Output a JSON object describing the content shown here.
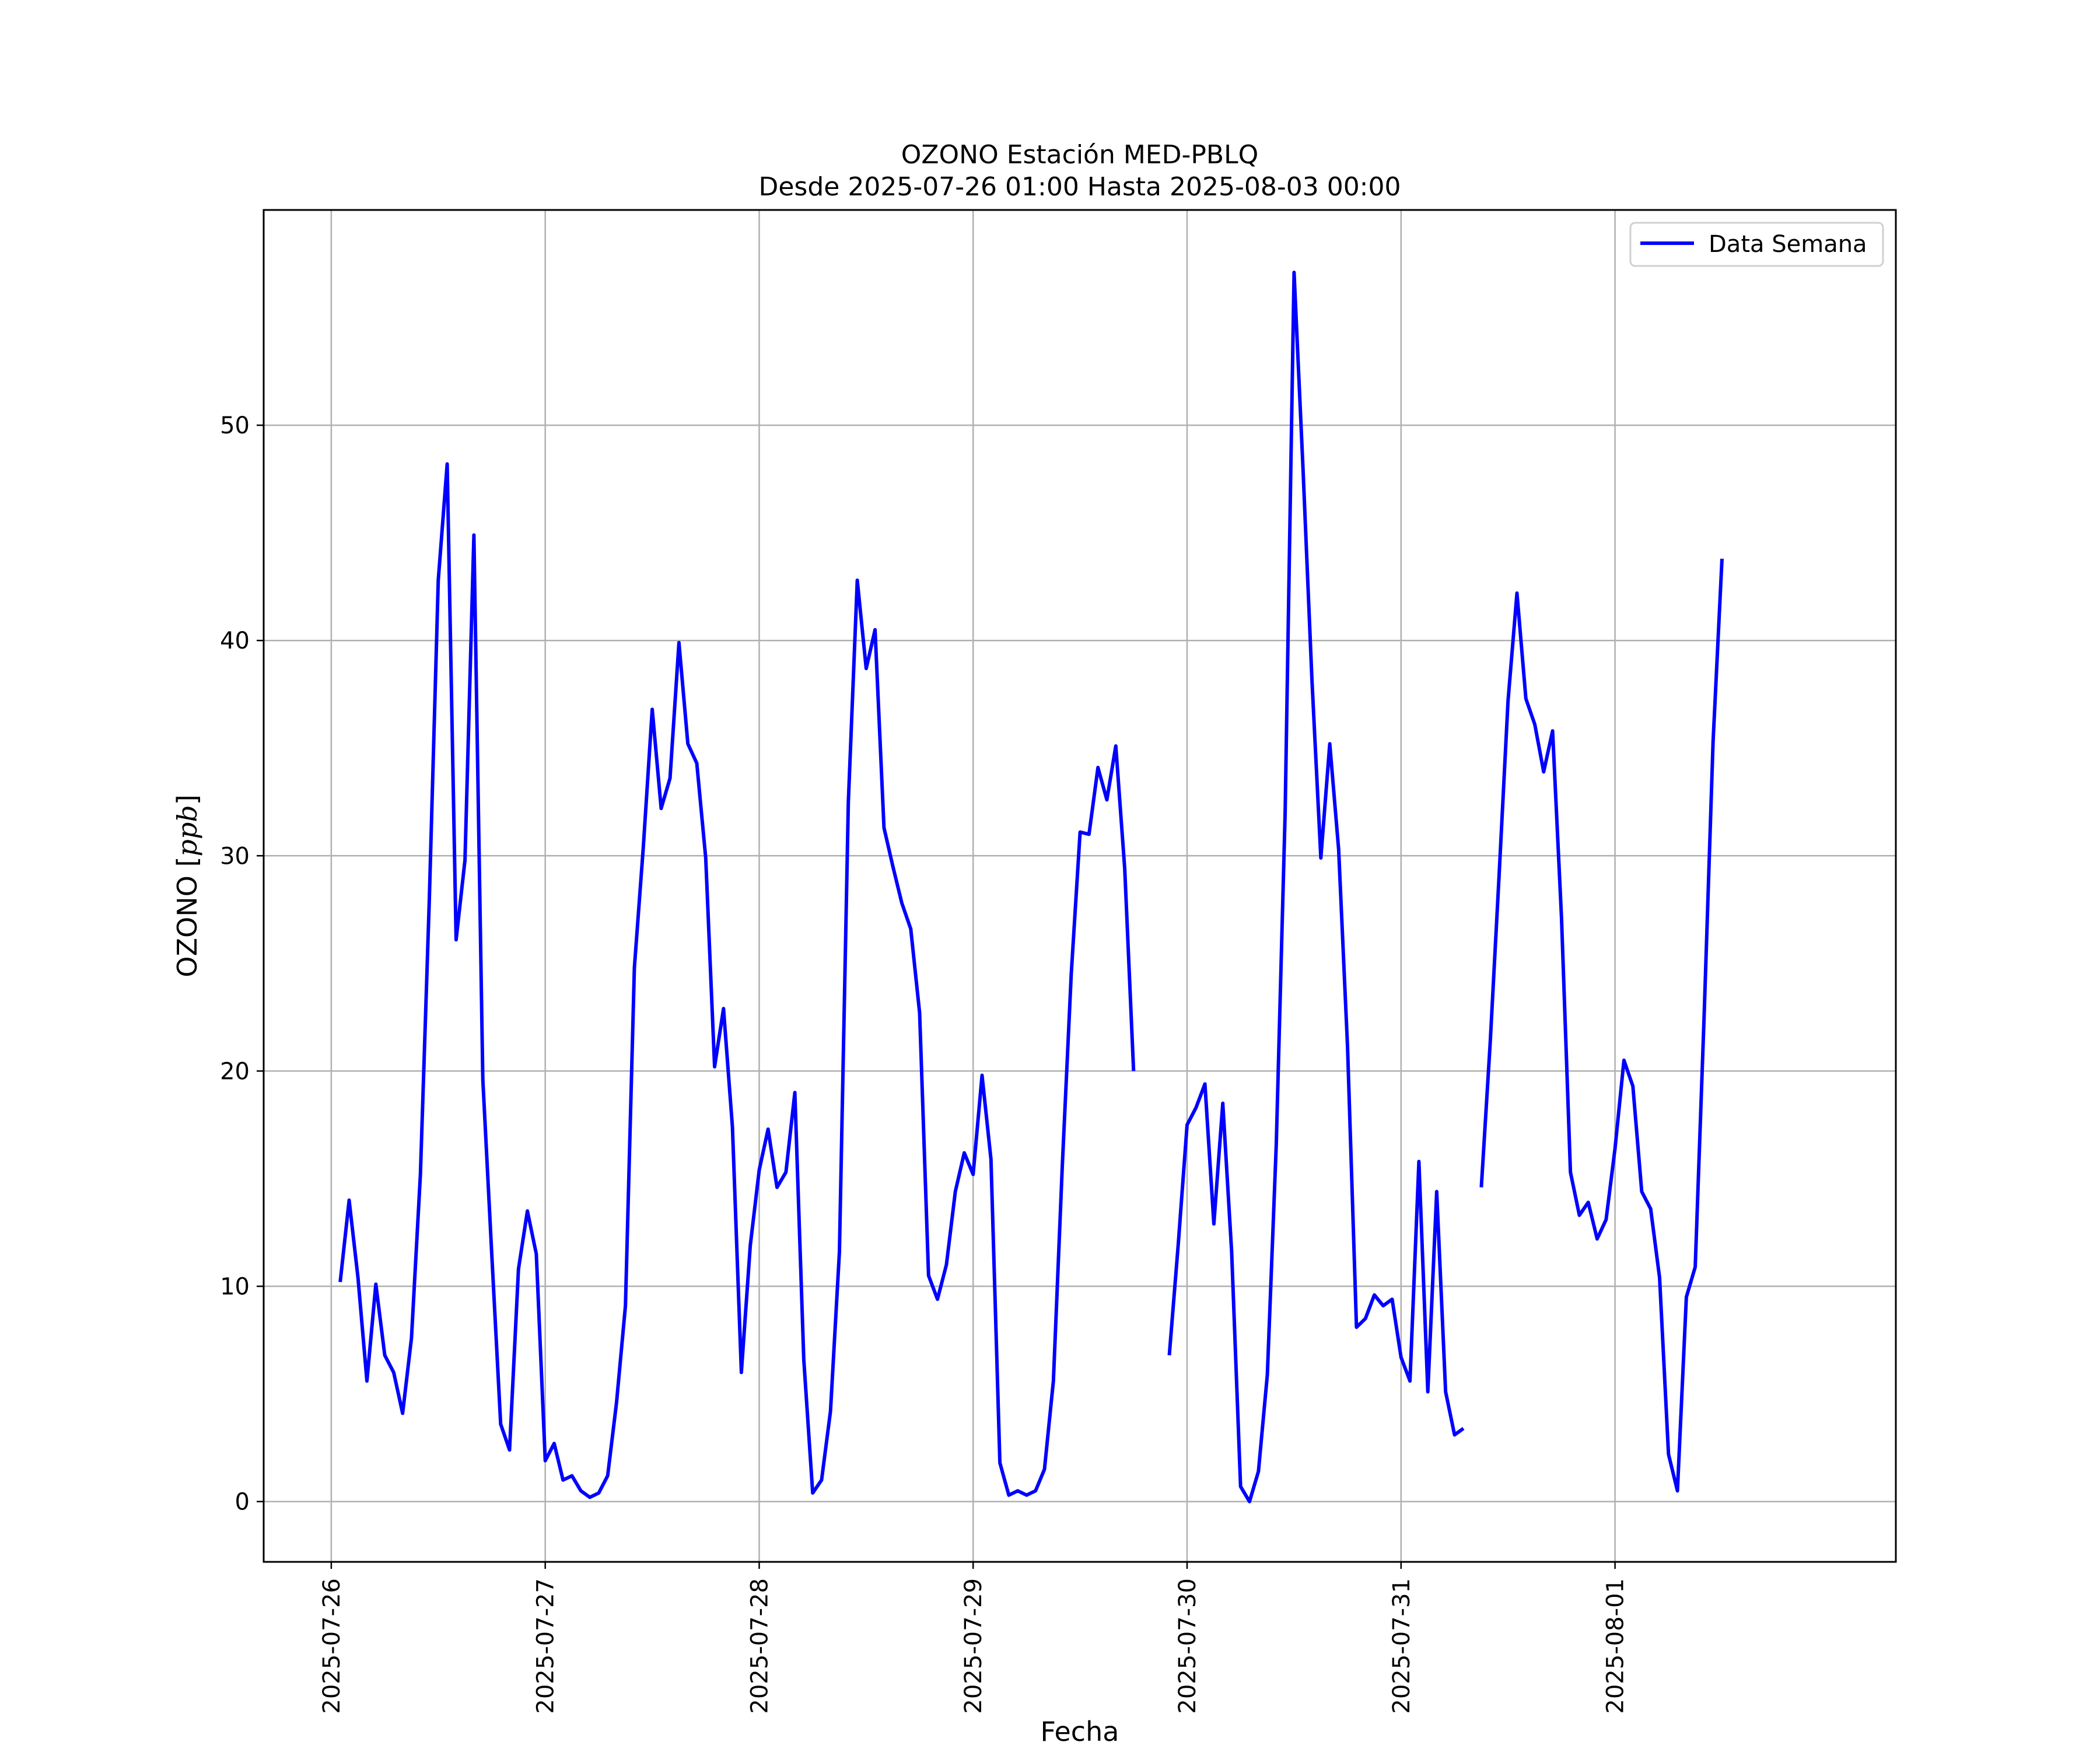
{
  "chart_data": {
    "type": "line",
    "title": "OZONO Estación MED-PBLQ",
    "subtitle": "Desde 2025-07-26 01:00 Hasta 2025-08-03 00:00",
    "xlabel": "Fecha",
    "ylabel_prefix": "OZONO [",
    "ylabel_unit": "ppb",
    "ylabel_suffix": "]",
    "ylim": [
      -2.8,
      60.0
    ],
    "xlim": [
      "2025-07-25 16:25",
      "2025-08-02 07:30"
    ],
    "grid": true,
    "legend_position": "top-right",
    "x_ticks": [
      "2025-07-26",
      "2025-07-27",
      "2025-07-28",
      "2025-07-29",
      "2025-07-30",
      "2025-07-31",
      "2025-08-01"
    ],
    "y_ticks": [
      0,
      10,
      20,
      30,
      40,
      50
    ],
    "series": [
      {
        "name": "Data Semana",
        "color": "#0000ff",
        "points": [
          [
            "2025-07-26 01:00",
            10.2
          ],
          [
            "2025-07-26 02:00",
            14.0
          ],
          [
            "2025-07-26 03:00",
            10.4
          ],
          [
            "2025-07-26 04:00",
            5.6
          ],
          [
            "2025-07-26 05:00",
            10.1
          ],
          [
            "2025-07-26 06:00",
            6.8
          ],
          [
            "2025-07-26 07:00",
            6.0
          ],
          [
            "2025-07-26 08:00",
            4.1
          ],
          [
            "2025-07-26 09:00",
            7.6
          ],
          [
            "2025-07-26 10:00",
            15.2
          ],
          [
            "2025-07-26 11:00",
            28.0
          ],
          [
            "2025-07-26 12:00",
            42.8
          ],
          [
            "2025-07-26 13:00",
            48.2
          ],
          [
            "2025-07-26 14:00",
            26.1
          ],
          [
            "2025-07-26 15:00",
            29.8
          ],
          [
            "2025-07-26 16:00",
            44.9
          ],
          [
            "2025-07-26 17:00",
            19.6
          ],
          [
            "2025-07-26 18:00",
            11.5
          ],
          [
            "2025-07-26 19:00",
            3.6
          ],
          [
            "2025-07-26 20:00",
            2.4
          ],
          [
            "2025-07-26 21:00",
            10.8
          ],
          [
            "2025-07-26 22:00",
            13.5
          ],
          [
            "2025-07-26 23:00",
            11.5
          ],
          [
            "2025-07-27 00:00",
            1.9
          ],
          [
            "2025-07-27 01:00",
            2.7
          ],
          [
            "2025-07-27 02:00",
            1.0
          ],
          [
            "2025-07-27 03:00",
            1.2
          ],
          [
            "2025-07-27 04:00",
            0.5
          ],
          [
            "2025-07-27 05:00",
            0.2
          ],
          [
            "2025-07-27 06:00",
            0.4
          ],
          [
            "2025-07-27 07:00",
            1.2
          ],
          [
            "2025-07-27 08:00",
            4.6
          ],
          [
            "2025-07-27 09:00",
            9.1
          ],
          [
            "2025-07-27 10:00",
            24.8
          ],
          [
            "2025-07-27 11:00",
            30.4
          ],
          [
            "2025-07-27 12:00",
            36.8
          ],
          [
            "2025-07-27 13:00",
            32.2
          ],
          [
            "2025-07-27 14:00",
            33.6
          ],
          [
            "2025-07-27 15:00",
            39.9
          ],
          [
            "2025-07-27 16:00",
            35.2
          ],
          [
            "2025-07-27 17:00",
            34.3
          ],
          [
            "2025-07-27 18:00",
            29.9
          ],
          [
            "2025-07-27 19:00",
            20.2
          ],
          [
            "2025-07-27 20:00",
            22.9
          ],
          [
            "2025-07-27 21:00",
            17.4
          ],
          [
            "2025-07-27 22:00",
            6.0
          ],
          [
            "2025-07-27 23:00",
            11.9
          ],
          [
            "2025-07-28 00:00",
            15.4
          ],
          [
            "2025-07-28 01:00",
            17.3
          ],
          [
            "2025-07-28 02:00",
            14.6
          ],
          [
            "2025-07-28 03:00",
            15.3
          ],
          [
            "2025-07-28 04:00",
            19.0
          ],
          [
            "2025-07-28 05:00",
            6.6
          ],
          [
            "2025-07-28 06:00",
            0.4
          ],
          [
            "2025-07-28 07:00",
            1.0
          ],
          [
            "2025-07-28 08:00",
            4.2
          ],
          [
            "2025-07-28 09:00",
            11.6
          ],
          [
            "2025-07-28 10:00",
            32.5
          ],
          [
            "2025-07-28 11:00",
            42.8
          ],
          [
            "2025-07-28 12:00",
            38.7
          ],
          [
            "2025-07-28 13:00",
            40.5
          ],
          [
            "2025-07-28 14:00",
            31.3
          ],
          [
            "2025-07-28 15:00",
            29.5
          ],
          [
            "2025-07-28 16:00",
            27.8
          ],
          [
            "2025-07-28 17:00",
            26.6
          ],
          [
            "2025-07-28 18:00",
            22.7
          ],
          [
            "2025-07-28 19:00",
            10.5
          ],
          [
            "2025-07-28 20:00",
            9.4
          ],
          [
            "2025-07-28 21:00",
            11.0
          ],
          [
            "2025-07-28 22:00",
            14.4
          ],
          [
            "2025-07-28 23:00",
            16.2
          ],
          [
            "2025-07-29 00:00",
            15.2
          ],
          [
            "2025-07-29 01:00",
            19.8
          ],
          [
            "2025-07-29 02:00",
            15.9
          ],
          [
            "2025-07-29 03:00",
            1.8
          ],
          [
            "2025-07-29 04:00",
            0.3
          ],
          [
            "2025-07-29 05:00",
            0.5
          ],
          [
            "2025-07-29 06:00",
            0.3
          ],
          [
            "2025-07-29 07:00",
            0.5
          ],
          [
            "2025-07-29 08:00",
            1.5
          ],
          [
            "2025-07-29 09:00",
            5.6
          ],
          [
            "2025-07-29 10:00",
            15.6
          ],
          [
            "2025-07-29 11:00",
            24.5
          ],
          [
            "2025-07-29 12:00",
            31.1
          ],
          [
            "2025-07-29 13:00",
            31.0
          ],
          [
            "2025-07-29 14:00",
            34.1
          ],
          [
            "2025-07-29 15:00",
            32.6
          ],
          [
            "2025-07-29 16:00",
            35.1
          ],
          [
            "2025-07-29 17:00",
            29.4
          ],
          [
            "2025-07-29 18:00",
            20.0
          ],
          [
            "2025-07-29 19:00",
            null
          ],
          [
            "2025-07-29 20:00",
            null
          ],
          [
            "2025-07-29 21:00",
            null
          ],
          [
            "2025-07-29 22:00",
            6.8
          ],
          [
            "2025-07-29 23:00",
            11.9
          ],
          [
            "2025-07-30 00:00",
            17.5
          ],
          [
            "2025-07-30 01:00",
            18.3
          ],
          [
            "2025-07-30 02:00",
            19.4
          ],
          [
            "2025-07-30 03:00",
            12.9
          ],
          [
            "2025-07-30 04:00",
            18.5
          ],
          [
            "2025-07-30 05:00",
            11.6
          ],
          [
            "2025-07-30 06:00",
            0.7
          ],
          [
            "2025-07-30 07:00",
            0.0
          ],
          [
            "2025-07-30 08:00",
            1.4
          ],
          [
            "2025-07-30 09:00",
            5.9
          ],
          [
            "2025-07-30 10:00",
            16.6
          ],
          [
            "2025-07-30 11:00",
            32.0
          ],
          [
            "2025-07-30 12:00",
            57.1
          ],
          [
            "2025-07-30 13:00",
            48.0
          ],
          [
            "2025-07-30 14:00",
            38.2
          ],
          [
            "2025-07-30 15:00",
            29.9
          ],
          [
            "2025-07-30 16:00",
            35.2
          ],
          [
            "2025-07-30 17:00",
            30.3
          ],
          [
            "2025-07-30 18:00",
            21.1
          ],
          [
            "2025-07-30 19:00",
            8.1
          ],
          [
            "2025-07-30 20:00",
            8.5
          ],
          [
            "2025-07-30 21:00",
            9.6
          ],
          [
            "2025-07-30 22:00",
            9.1
          ],
          [
            "2025-07-30 23:00",
            9.4
          ],
          [
            "2025-07-31 00:00",
            6.7
          ],
          [
            "2025-07-31 01:00",
            5.6
          ],
          [
            "2025-07-31 02:00",
            15.8
          ],
          [
            "2025-07-31 03:00",
            5.1
          ],
          [
            "2025-07-31 04:00",
            14.4
          ],
          [
            "2025-07-31 05:00",
            5.1
          ],
          [
            "2025-07-31 06:00",
            3.1
          ],
          [
            "2025-07-31 07:00",
            3.4
          ],
          [
            "2025-07-31 08:00",
            null
          ],
          [
            "2025-07-31 09:00",
            14.6
          ],
          [
            "2025-07-31 10:00",
            21.3
          ],
          [
            "2025-07-31 11:00",
            29.1
          ],
          [
            "2025-07-31 12:00",
            37.2
          ],
          [
            "2025-07-31 13:00",
            42.2
          ],
          [
            "2025-07-31 14:00",
            37.3
          ],
          [
            "2025-07-31 15:00",
            36.1
          ],
          [
            "2025-07-31 16:00",
            33.9
          ],
          [
            "2025-07-31 17:00",
            35.8
          ],
          [
            "2025-07-31 18:00",
            27.1
          ],
          [
            "2025-07-31 19:00",
            15.3
          ],
          [
            "2025-07-31 20:00",
            13.3
          ],
          [
            "2025-07-31 21:00",
            13.9
          ],
          [
            "2025-07-31 22:00",
            12.2
          ],
          [
            "2025-07-31 23:00",
            13.1
          ],
          [
            "2025-08-01 00:00",
            16.4
          ],
          [
            "2025-08-01 01:00",
            20.5
          ],
          [
            "2025-08-01 02:00",
            19.3
          ],
          [
            "2025-08-01 03:00",
            14.4
          ],
          [
            "2025-08-01 04:00",
            13.6
          ],
          [
            "2025-08-01 05:00",
            10.4
          ],
          [
            "2025-08-01 06:00",
            2.2
          ],
          [
            "2025-08-01 07:00",
            0.5
          ],
          [
            "2025-08-01 08:00",
            9.5
          ],
          [
            "2025-08-01 09:00",
            10.9
          ],
          [
            "2025-08-01 10:00",
            22.6
          ],
          [
            "2025-08-01 11:00",
            35.3
          ],
          [
            "2025-08-01 12:00",
            43.8
          ]
        ]
      }
    ]
  }
}
